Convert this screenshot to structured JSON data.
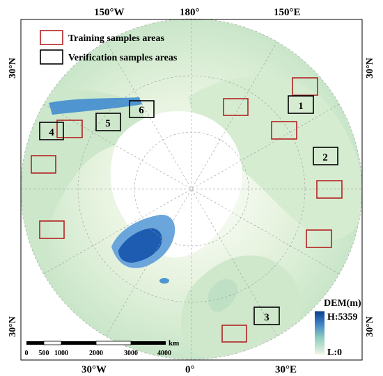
{
  "coords": {
    "top_left": "150°W",
    "top_center": "180°",
    "top_right": "150°E",
    "left_upper": "30°N",
    "right_upper": "30°N",
    "left_lower": "30°N",
    "right_lower": "30°N",
    "bottom_left": "30°W",
    "bottom_center": "0°",
    "bottom_right": "30°E"
  },
  "legend": {
    "training_label": "Training samples areas",
    "verification_label": "Verification samples areas",
    "training_color": "#b22222",
    "verification_color": "#000000"
  },
  "dem": {
    "title": "DEM(m)",
    "high": "H:5359",
    "low": "L:0"
  },
  "scalebar": {
    "ticks": [
      "0",
      "500",
      "1000",
      "2000",
      "3000",
      "4000"
    ],
    "unit": "km"
  },
  "verification_areas": [
    {
      "label": "1"
    },
    {
      "label": "2"
    },
    {
      "label": "3"
    },
    {
      "label": "4"
    },
    {
      "label": "5"
    },
    {
      "label": "6"
    }
  ],
  "colors": {
    "land": "#cfe8cc",
    "land_light": "#e4f2dc",
    "ice": "#ffffff",
    "dem_high": "#0b3e8f",
    "dem_mid": "#4f8fd1",
    "dem_low": "#a9d6c4"
  }
}
